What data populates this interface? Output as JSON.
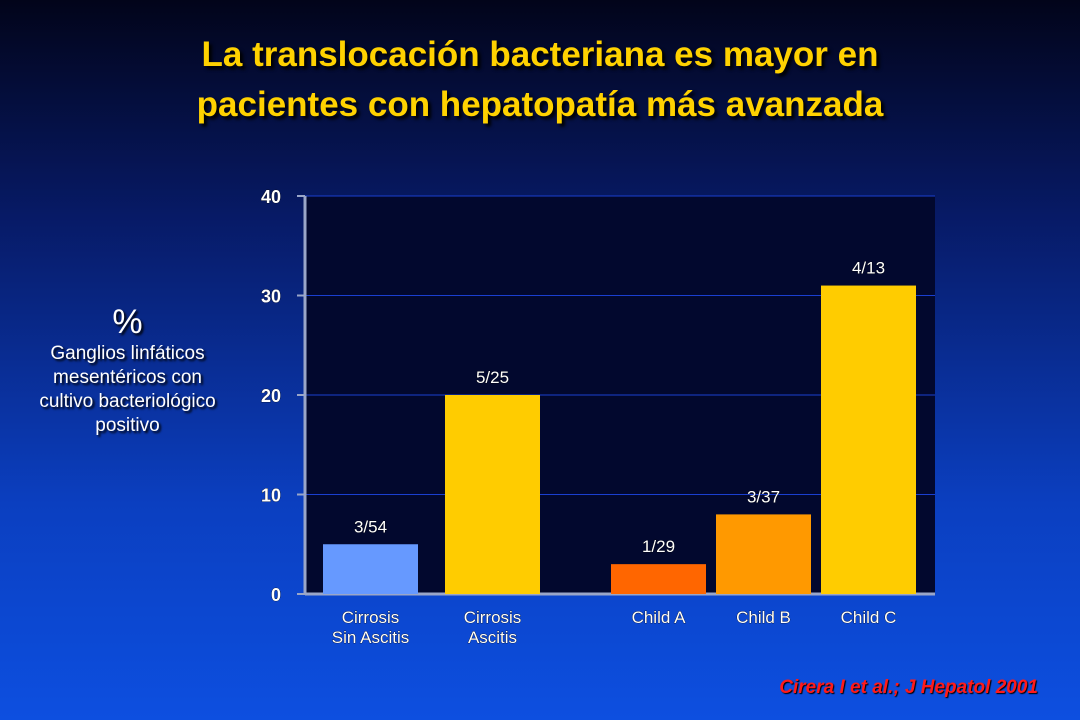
{
  "title_lines": [
    "La translocación bacteriana es mayor en",
    "pacientes con hepatopatía más avanzada"
  ],
  "yaxis_label": {
    "symbol": "%",
    "lines": [
      "Ganglios linfáticos",
      "mesentéricos  con",
      "cultivo bacteriológico",
      "positivo"
    ]
  },
  "citation": "Cirera I et al.; J Hepatol 2001",
  "colors": {
    "title": "#ffd200",
    "plot_background": "#02082e",
    "gridline": "#1a3fd0",
    "axis": "#9aa6c8",
    "text": "#ffffff",
    "citation": "#ff1a1a"
  },
  "chart_data": {
    "type": "bar",
    "ylim": [
      0,
      40
    ],
    "yticks": [
      0,
      10,
      20,
      30,
      40
    ],
    "grid": true,
    "categories": [
      {
        "label": [
          "Cirrosis",
          "Sin Ascitis"
        ],
        "value": 5,
        "data_label": "3/54",
        "color": "#6699ff",
        "group": 1
      },
      {
        "label": [
          "Cirrosis",
          "Ascitis"
        ],
        "value": 20,
        "data_label": "5/25",
        "color": "#ffcc00",
        "group": 1
      },
      {
        "label": [
          "Child A"
        ],
        "value": 3,
        "data_label": "1/29",
        "color": "#ff6600",
        "group": 2
      },
      {
        "label": [
          "Child B"
        ],
        "value": 8,
        "data_label": "3/37",
        "color": "#ff9900",
        "group": 2
      },
      {
        "label": [
          "Child C"
        ],
        "value": 31,
        "data_label": "4/13",
        "color": "#ffcc00",
        "group": 2
      }
    ]
  }
}
